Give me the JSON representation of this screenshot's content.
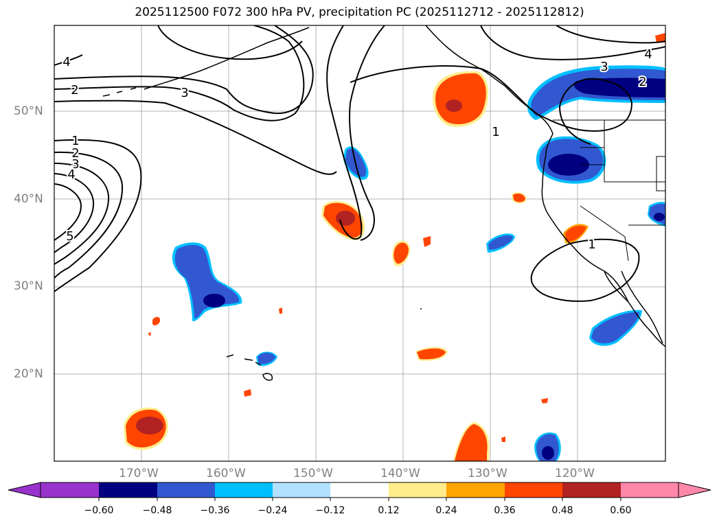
{
  "title": "2025112500 F072 300 hPa PV, precipitation PC (2025112712 - 2025112812)",
  "lat_labels": [
    "50°N",
    "40°N",
    "30°N",
    "20°N"
  ],
  "lon_labels": [
    "170°W",
    "160°W",
    "150°W",
    "140°W",
    "130°W",
    "120°W"
  ],
  "contour_labels": [
    "4",
    "2",
    "3",
    "1",
    "2",
    "3",
    "4",
    "5",
    "1",
    "3",
    "2",
    "4",
    "1"
  ],
  "colorbar": {
    "ticks": [
      "−0.60",
      "−0.48",
      "−0.36",
      "−0.24",
      "−0.12",
      "0.12",
      "0.24",
      "0.36",
      "0.48",
      "0.60"
    ],
    "colors": [
      "#9932cc",
      "#000080",
      "#3158d0",
      "#00bfff",
      "#b0e2ff",
      "#ffffff",
      "#ffec8b",
      "#ffa500",
      "#ff4500",
      "#b22222",
      "#ff88aa"
    ]
  },
  "colors": {
    "pos_light": "#ffec8b",
    "pos_mid": "#ffa500",
    "pos_strong": "#ff4500",
    "pos_max": "#b22222",
    "neg_light": "#00bfff",
    "neg_mid": "#3158d0",
    "neg_max": "#000080"
  }
}
